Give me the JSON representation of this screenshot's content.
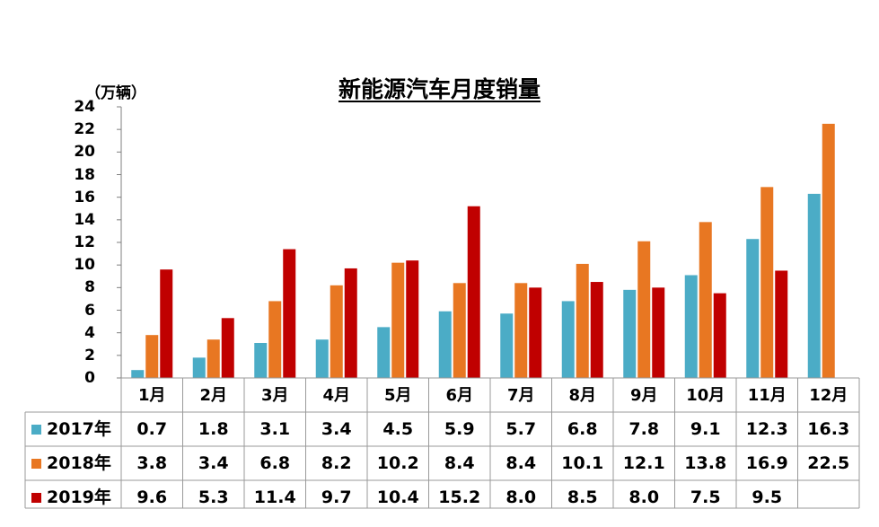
{
  "chart_data": {
    "type": "bar",
    "title": "新能源汽车月度销量",
    "ylabel": "（万辆）",
    "ylim": [
      0,
      24
    ],
    "yticks": [
      0,
      2,
      4,
      6,
      8,
      10,
      12,
      14,
      16,
      18,
      20,
      22,
      24
    ],
    "categories": [
      "1月",
      "2月",
      "3月",
      "4月",
      "5月",
      "6月",
      "7月",
      "8月",
      "9月",
      "10月",
      "11月",
      "12月"
    ],
    "series": [
      {
        "name": "2017年",
        "color": "#4BACC6",
        "values": [
          0.7,
          1.8,
          3.1,
          3.4,
          4.5,
          5.9,
          5.7,
          6.8,
          7.8,
          9.1,
          12.3,
          16.3
        ],
        "labels": [
          "0.7",
          "1.8",
          "3.1",
          "3.4",
          "4.5",
          "5.9",
          "5.7",
          "6.8",
          "7.8",
          "9.1",
          "12.3",
          "16.3"
        ]
      },
      {
        "name": "2018年",
        "color": "#E87722",
        "values": [
          3.8,
          3.4,
          6.8,
          8.2,
          10.2,
          8.4,
          8.4,
          10.1,
          12.1,
          13.8,
          16.9,
          22.5
        ],
        "labels": [
          "3.8",
          "3.4",
          "6.8",
          "8.2",
          "10.2",
          "8.4",
          "8.4",
          "10.1",
          "12.1",
          "13.8",
          "16.9",
          "22.5"
        ]
      },
      {
        "name": "2019年",
        "color": "#C00000",
        "values": [
          9.6,
          5.3,
          11.4,
          9.7,
          10.4,
          15.2,
          8.0,
          8.5,
          8.0,
          7.5,
          9.5,
          null
        ],
        "labels": [
          "9.6",
          "5.3",
          "11.4",
          "9.7",
          "10.4",
          "15.2",
          "8.0",
          "8.5",
          "8.0",
          "7.5",
          "9.5",
          ""
        ]
      }
    ],
    "grid": false,
    "legend": "data-table"
  }
}
